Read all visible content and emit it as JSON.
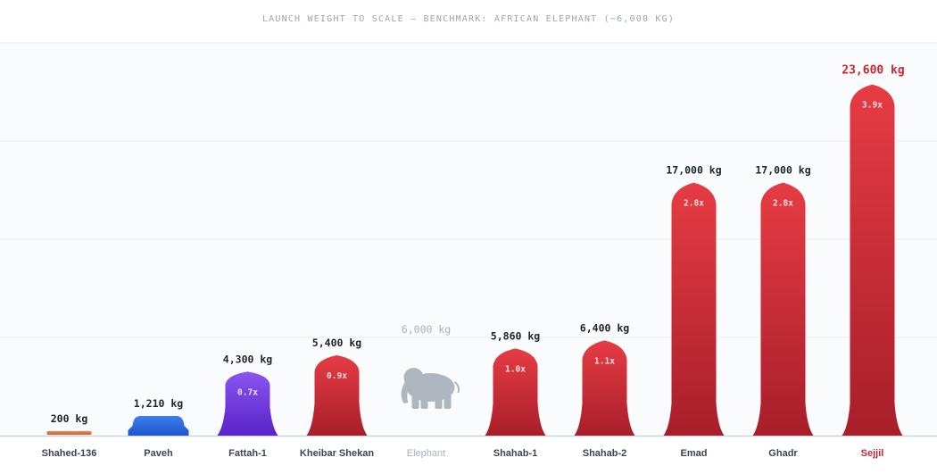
{
  "chart_data": {
    "type": "bar",
    "title": "LAUNCH WEIGHT TO SCALE — BENCHMARK: AFRICAN ELEPHANT (~6,000 KG)",
    "unit": "kg",
    "benchmark": {
      "name": "Elephant",
      "value": 6000
    },
    "ylim": [
      0,
      24000
    ],
    "grid": true,
    "categories": [
      "Shahed-136",
      "Paveh",
      "Fattah-1",
      "Kheibar Shekan",
      "Elephant",
      "Shahab-1",
      "Shahab-2",
      "Emad",
      "Ghadr",
      "Sejjil"
    ],
    "values": [
      200,
      1210,
      4300,
      5400,
      6000,
      5860,
      6400,
      17000,
      17000,
      23600
    ],
    "value_labels": [
      "200 kg",
      "1,210 kg",
      "4,300 kg",
      "5,400 kg",
      "6,000 kg",
      "5,860 kg",
      "6,400 kg",
      "17,000 kg",
      "17,000 kg",
      "23,600 kg"
    ],
    "ratio_labels": [
      "",
      "",
      "0.7x",
      "0.9x",
      "",
      "1.0x",
      "1.1x",
      "2.8x",
      "2.8x",
      "3.9x"
    ],
    "shapes": [
      "drone",
      "cruise",
      "rocket",
      "rocket",
      "elephant",
      "rocket",
      "rocket",
      "rocket",
      "rocket",
      "rocket"
    ],
    "colors": [
      "#e2773f",
      "#2f6fe0",
      "#7a3fe0",
      "#d4333c",
      "#b0b6c0",
      "#d4333c",
      "#d4333c",
      "#d4333c",
      "#d4333c",
      "#d4333c"
    ],
    "highlight": "Sejjil"
  }
}
